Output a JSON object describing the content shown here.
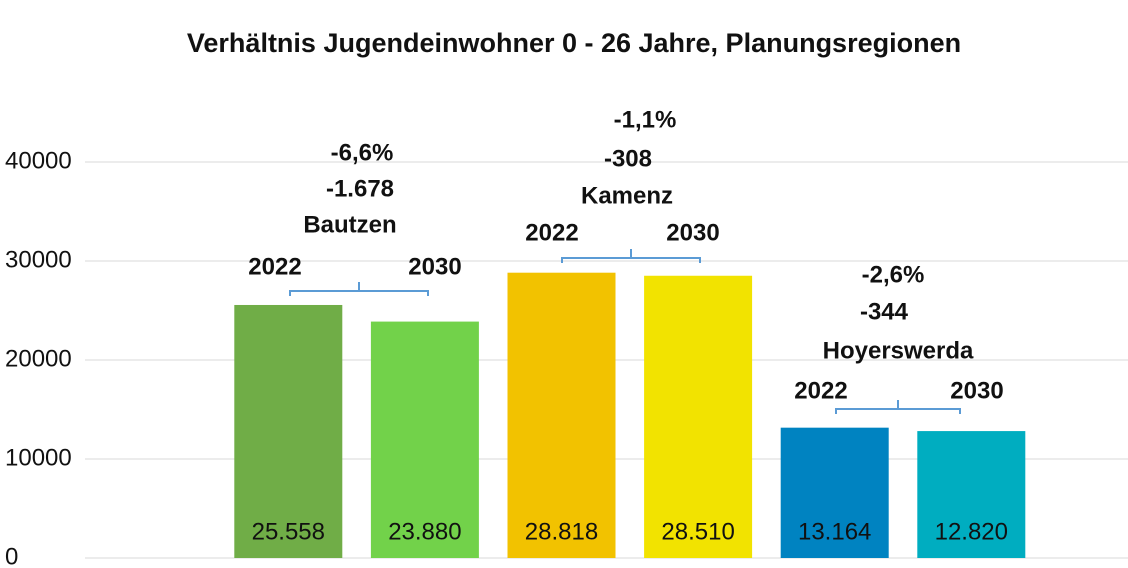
{
  "chart_data": {
    "type": "bar",
    "title": "Verhältnis Jugendeinwohner 0 - 26 Jahre, Planungsregionen",
    "categories": [
      "2022",
      "2030",
      "2022",
      "2030",
      "2022",
      "2030"
    ],
    "values": [
      25558,
      23880,
      28818,
      28510,
      13164,
      12820
    ],
    "value_labels": [
      "25.558",
      "23.880",
      "28.818",
      "28.510",
      "13.164",
      "12.820"
    ],
    "colors": [
      "#70ad47",
      "#72d24a",
      "#f2c200",
      "#f2e300",
      "#0083c1",
      "#00adc0"
    ],
    "groups": [
      {
        "name": "Bautzen",
        "annotations": [
          "-1.678",
          "-6,6%"
        ]
      },
      {
        "name": "Kamenz",
        "annotations": [
          "-308",
          "-1,1%"
        ]
      },
      {
        "name": "Hoyerswerda",
        "annotations": [
          "-344",
          "-2,6%"
        ]
      }
    ],
    "ylim": [
      0,
      50000
    ],
    "yticks": [
      0,
      10000,
      20000,
      30000,
      40000
    ],
    "grid": true
  }
}
